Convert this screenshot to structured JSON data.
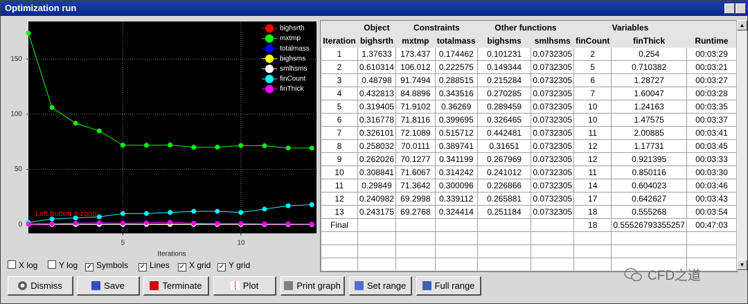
{
  "window": {
    "title": "Optimization run"
  },
  "chart_data": {
    "type": "line",
    "xlabel": "Iterations",
    "annotation": "Left button = zoom",
    "x": [
      1,
      2,
      3,
      4,
      5,
      6,
      7,
      8,
      9,
      10,
      11,
      12,
      13
    ],
    "xlim": [
      1,
      13.2
    ],
    "xticks": [
      5,
      10
    ],
    "ylim": [
      -8,
      184
    ],
    "yticks": [
      0,
      50,
      100,
      150
    ],
    "xgrid": true,
    "ygrid": true,
    "symbols": true,
    "lines": true,
    "legend": "upper right",
    "background": "#000000",
    "series": [
      {
        "name": "bighsrth",
        "color": "#ff0000",
        "values": [
          1.37633,
          0.610314,
          0.48798,
          0.432813,
          0.319405,
          0.316778,
          0.326101,
          0.258032,
          0.262026,
          0.308841,
          0.29849,
          0.240982,
          0.243175
        ]
      },
      {
        "name": "mxtmp",
        "color": "#00ff00",
        "values": [
          173.437,
          106.012,
          91.7494,
          84.8896,
          71.9102,
          71.8116,
          72.1089,
          70.0111,
          70.1277,
          71.6067,
          71.3642,
          69.2998,
          69.2768
        ]
      },
      {
        "name": "totalmass",
        "color": "#0000ff",
        "values": [
          0.174462,
          0.222575,
          0.288515,
          0.343516,
          0.36269,
          0.399695,
          0.515712,
          0.389741,
          0.341199,
          0.314242,
          0.300096,
          0.339112,
          0.324414
        ]
      },
      {
        "name": "bighsms",
        "color": "#ffff00",
        "values": [
          0.101231,
          0.149344,
          0.215284,
          0.270285,
          0.289459,
          0.326465,
          0.442481,
          0.31651,
          0.267969,
          0.241012,
          0.226866,
          0.265881,
          0.251184
        ]
      },
      {
        "name": "smlhsms",
        "color": "#ffffff",
        "values": [
          0.0732305,
          0.0732305,
          0.0732305,
          0.0732305,
          0.0732305,
          0.0732305,
          0.0732305,
          0.0732305,
          0.0732305,
          0.0732305,
          0.0732305,
          0.0732305,
          0.0732305
        ]
      },
      {
        "name": "finCount",
        "color": "#00ffff",
        "values": [
          2,
          5,
          6,
          7,
          10,
          10,
          11,
          12,
          12,
          11,
          14,
          17,
          18
        ]
      },
      {
        "name": "finThick",
        "color": "#ff00ff",
        "values": [
          0.254,
          0.710382,
          1.28727,
          1.60047,
          1.24163,
          1.47575,
          2.00885,
          1.17731,
          0.921395,
          0.850116,
          0.604023,
          0.642627,
          0.555268
        ]
      }
    ]
  },
  "options": [
    {
      "label": "X log",
      "checked": false
    },
    {
      "label": "Y log",
      "checked": false
    },
    {
      "label": "Symbols",
      "checked": true
    },
    {
      "label": "Lines",
      "checked": true
    },
    {
      "label": "X grid",
      "checked": true
    },
    {
      "label": "Y grid",
      "checked": true
    }
  ],
  "table": {
    "groups": [
      "Object",
      "Constraints",
      "Other functions",
      "Variables"
    ],
    "columns": [
      "Iteration",
      "bighsrth",
      "mxtmp",
      "totalmass",
      "bighsms",
      "smlhsms",
      "finCount",
      "finThick",
      "Runtime"
    ],
    "rows": [
      [
        "1",
        "1.37633",
        "173.437",
        "0.174462",
        "0.101231",
        "0.0732305",
        "2",
        "0.254",
        "00:03:29"
      ],
      [
        "2",
        "0.610314",
        "106.012",
        "0.222575",
        "0.149344",
        "0.0732305",
        "5",
        "0.710382",
        "00:03:21"
      ],
      [
        "3",
        "0.48798",
        "91.7494",
        "0.288515",
        "0.215284",
        "0.0732305",
        "6",
        "1.28727",
        "00:03:27"
      ],
      [
        "4",
        "0.432813",
        "84.8896",
        "0.343516",
        "0.270285",
        "0.0732305",
        "7",
        "1.60047",
        "00:03:28"
      ],
      [
        "5",
        "0.319405",
        "71.9102",
        "0.36269",
        "0.289459",
        "0.0732305",
        "10",
        "1.24163",
        "00:03:35"
      ],
      [
        "6",
        "0.316778",
        "71.8116",
        "0.399695",
        "0.326465",
        "0.0732305",
        "10",
        "1.47575",
        "00:03:37"
      ],
      [
        "7",
        "0.326101",
        "72.1089",
        "0.515712",
        "0.442481",
        "0.0732305",
        "11",
        "2.00885",
        "00:03:41"
      ],
      [
        "8",
        "0.258032",
        "70.0111",
        "0.389741",
        "0.31651",
        "0.0732305",
        "12",
        "1.17731",
        "00:03:45"
      ],
      [
        "9",
        "0.262026",
        "70.1277",
        "0.341199",
        "0.267969",
        "0.0732305",
        "12",
        "0.921395",
        "00:03:33"
      ],
      [
        "10",
        "0.308841",
        "71.6067",
        "0.314242",
        "0.241012",
        "0.0732305",
        "11",
        "0.850116",
        "00:03:30"
      ],
      [
        "11",
        "0.29849",
        "71.3642",
        "0.300096",
        "0.226866",
        "0.0732305",
        "14",
        "0.604023",
        "00:03:46"
      ],
      [
        "12",
        "0.240982",
        "69.2998",
        "0.339112",
        "0.265881",
        "0.0732305",
        "17",
        "0.642627",
        "00:03:43"
      ],
      [
        "13",
        "0.243175",
        "69.2768",
        "0.324414",
        "0.251184",
        "0.0732305",
        "18",
        "0.555268",
        "00:03:54"
      ],
      [
        "Final",
        null,
        null,
        null,
        null,
        null,
        "18",
        "0.55526793355257",
        "00:47:03"
      ]
    ]
  },
  "buttons": [
    "Dismiss",
    "Save",
    "Terminate",
    "Plot",
    "Print graph",
    "Set range",
    "Full range"
  ],
  "watermark": "CFD之道"
}
